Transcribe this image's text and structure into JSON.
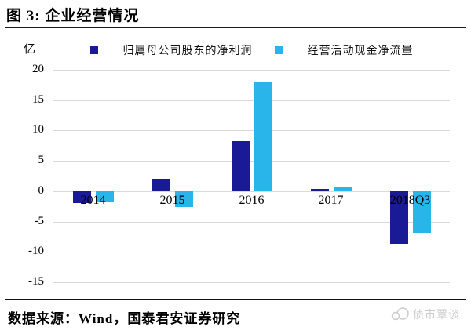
{
  "title": "图 3: 企业经营情况",
  "unit_label": "亿",
  "source": "数据来源：Wind，国泰君安证券研究",
  "watermark": "债市覃谈",
  "colors": {
    "net_profit": "#1a1a96",
    "cash_flow": "#29b5e9",
    "gridline": "#d9d9d9",
    "rule": "#111111",
    "watermark_gray": "#cccccc"
  },
  "chart_data": {
    "type": "bar",
    "title": "图 3: 企业经营情况",
    "unit": "亿",
    "categories": [
      "2014",
      "2015",
      "2016",
      "2017",
      "2018Q3"
    ],
    "series": [
      {
        "name": "归属母公司股东的净利润",
        "color": "#1a1a96",
        "values": [
          -2.0,
          2.1,
          8.3,
          0.4,
          -8.7
        ]
      },
      {
        "name": "经营活动现金净流量",
        "color": "#29b5e9",
        "values": [
          -1.8,
          -2.6,
          18.0,
          0.7,
          -6.9
        ]
      }
    ],
    "ylabel": "亿",
    "ylim": [
      -15,
      20
    ],
    "yticks": [
      20,
      15,
      10,
      5,
      0,
      -5,
      -10,
      -15
    ],
    "grid": true,
    "legend_position": "top"
  }
}
